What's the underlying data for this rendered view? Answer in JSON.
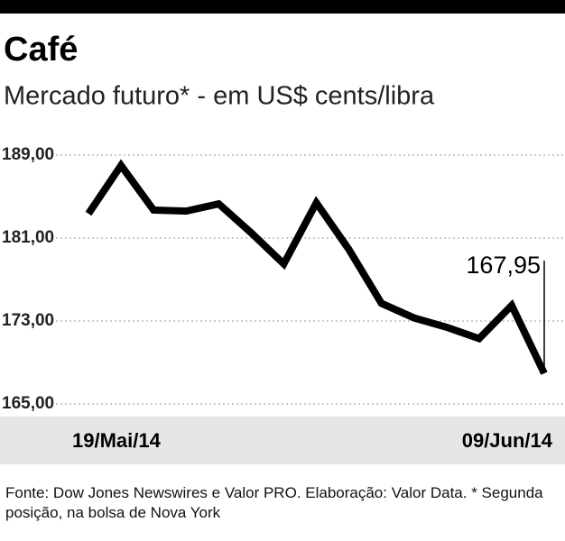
{
  "chart_data": {
    "type": "line",
    "title": "Café",
    "subtitle": "Mercado futuro* - em US$ cents/libra",
    "note": "Fonte: Dow Jones Newswires e Valor PRO. Elaboração: Valor Data. * Segunda posição, na bolsa de Nova York",
    "categories": [
      "19/Mai/14",
      null,
      null,
      null,
      null,
      null,
      null,
      null,
      null,
      null,
      null,
      null,
      null,
      null,
      "09/Jun/14"
    ],
    "series": [
      {
        "name": "Café",
        "color": "#000000",
        "values": [
          183.35,
          188.0,
          183.7,
          183.6,
          184.3,
          181.5,
          178.5,
          184.4,
          179.9,
          174.7,
          173.3,
          172.4,
          171.3,
          174.5,
          167.95
        ],
        "value_labels": [
          null,
          null,
          null,
          null,
          null,
          null,
          null,
          null,
          null,
          null,
          null,
          null,
          null,
          null,
          "167,95"
        ]
      }
    ],
    "ylim": [
      165,
      189
    ],
    "yticks": [
      {
        "value": 165,
        "label": "165,00"
      },
      {
        "value": 173,
        "label": "173,00"
      },
      {
        "value": 181,
        "label": "181,00"
      },
      {
        "value": 189,
        "label": "189,00"
      }
    ],
    "grid": true
  }
}
